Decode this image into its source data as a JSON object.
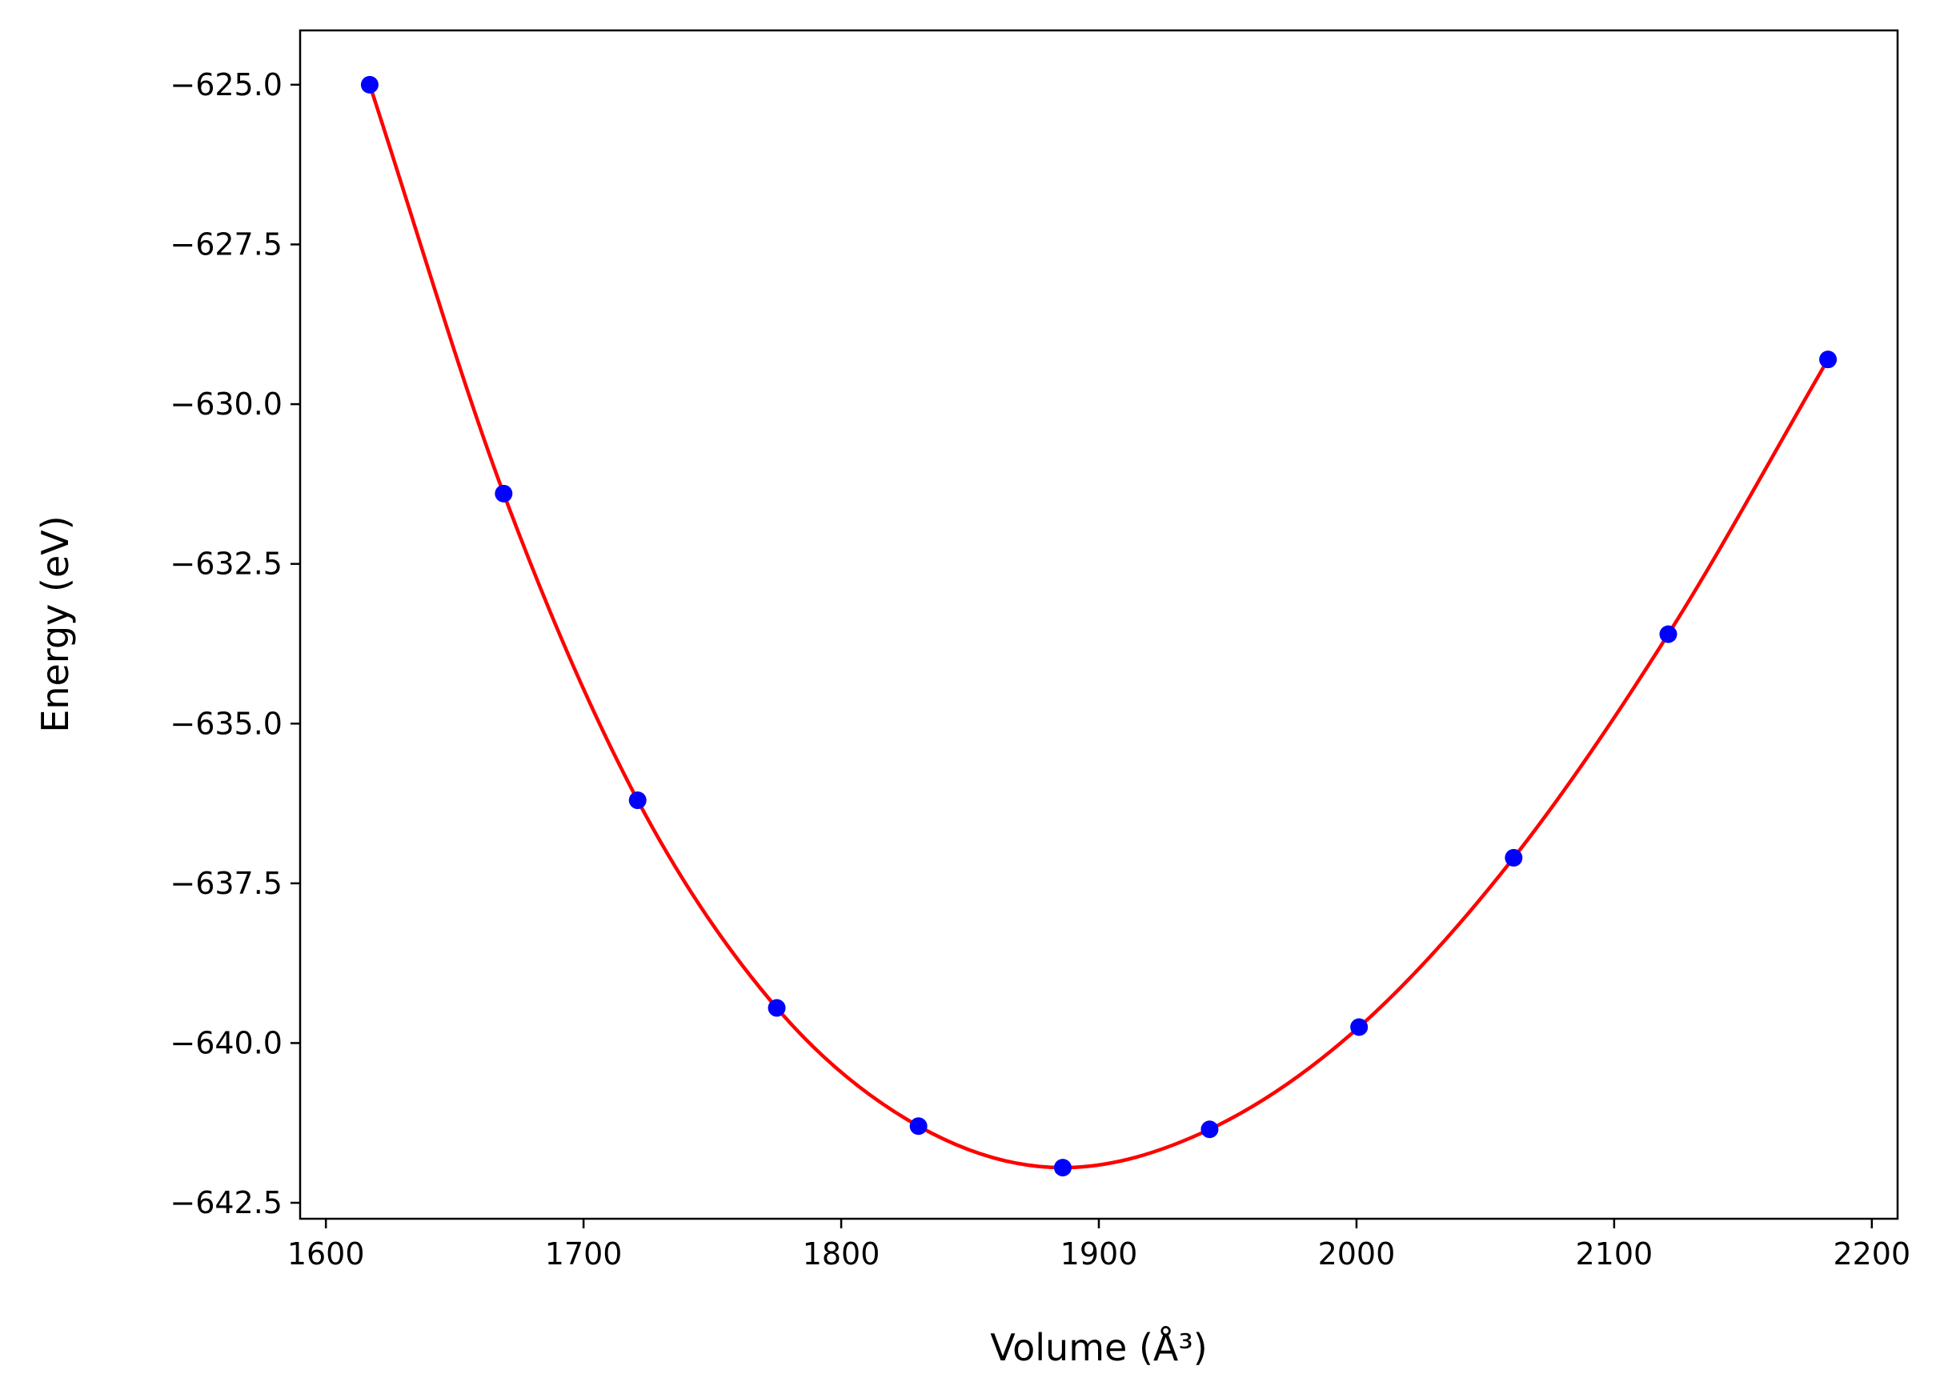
{
  "chart_data": {
    "type": "line",
    "xlabel": "Volume (Å³)",
    "ylabel": "Energy (eV)",
    "xlim": [
      1590,
      2210
    ],
    "ylim": [
      -642.75,
      -624.15
    ],
    "xticks": [
      1600,
      1700,
      1800,
      1900,
      2000,
      2100,
      2200
    ],
    "yticks": [
      -625.0,
      -627.5,
      -630.0,
      -632.5,
      -635.0,
      -637.5,
      -640.0,
      -642.5
    ],
    "xtick_labels": [
      "1600",
      "1700",
      "1800",
      "1900",
      "2000",
      "2100",
      "2200"
    ],
    "ytick_labels": [
      "−625.0",
      "−627.5",
      "−630.0",
      "−632.5",
      "−635.0",
      "−637.5",
      "−640.0",
      "−642.5"
    ],
    "grid": false,
    "series": [
      {
        "kind": "scatter",
        "color": "#0000ff",
        "x": [
          1617,
          1669,
          1721,
          1775,
          1830,
          1886,
          1943,
          2001,
          2061,
          2121,
          2183
        ],
        "y": [
          -625.0,
          -631.4,
          -636.2,
          -639.45,
          -641.3,
          -641.95,
          -641.35,
          -639.75,
          -637.1,
          -633.6,
          -629.3
        ]
      },
      {
        "kind": "line",
        "color": "#ff0000",
        "x": [
          1617,
          1669,
          1721,
          1775,
          1830,
          1886,
          1943,
          2001,
          2061,
          2121,
          2183
        ],
        "y": [
          -625.0,
          -631.4,
          -636.2,
          -639.45,
          -641.3,
          -641.95,
          -641.35,
          -639.75,
          -637.1,
          -633.6,
          -629.3
        ]
      }
    ]
  }
}
